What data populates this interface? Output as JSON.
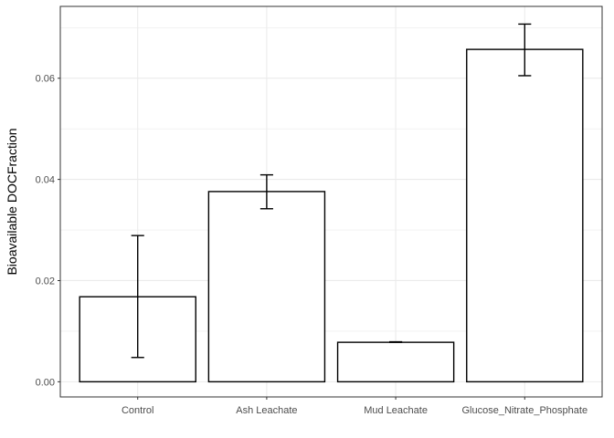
{
  "chart_data": {
    "type": "bar",
    "title": "",
    "xlabel": "",
    "ylabel": "Bioavailable DOCFraction",
    "categories": [
      "Control",
      "Ash Leachate",
      "Mud Leachate",
      "Glucose_Nitrate_Phosphate"
    ],
    "values": [
      0.0168,
      0.0376,
      0.0078,
      0.0657
    ],
    "error_low": [
      0.0048,
      0.0342,
      0.0078,
      0.0605
    ],
    "error_high": [
      0.0289,
      0.0409,
      0.0079,
      0.0707
    ],
    "ylim": [
      -0.003,
      0.0742
    ],
    "yticks": [
      0.0,
      0.02,
      0.04,
      0.06
    ],
    "ytick_labels": [
      "0.00",
      "0.02",
      "0.04",
      "0.06"
    ],
    "grid": true,
    "colors": {
      "bar_fill": "#ffffff",
      "bar_stroke": "#000000",
      "grid_major": "#ebebeb",
      "panel_border": "#333333"
    }
  }
}
